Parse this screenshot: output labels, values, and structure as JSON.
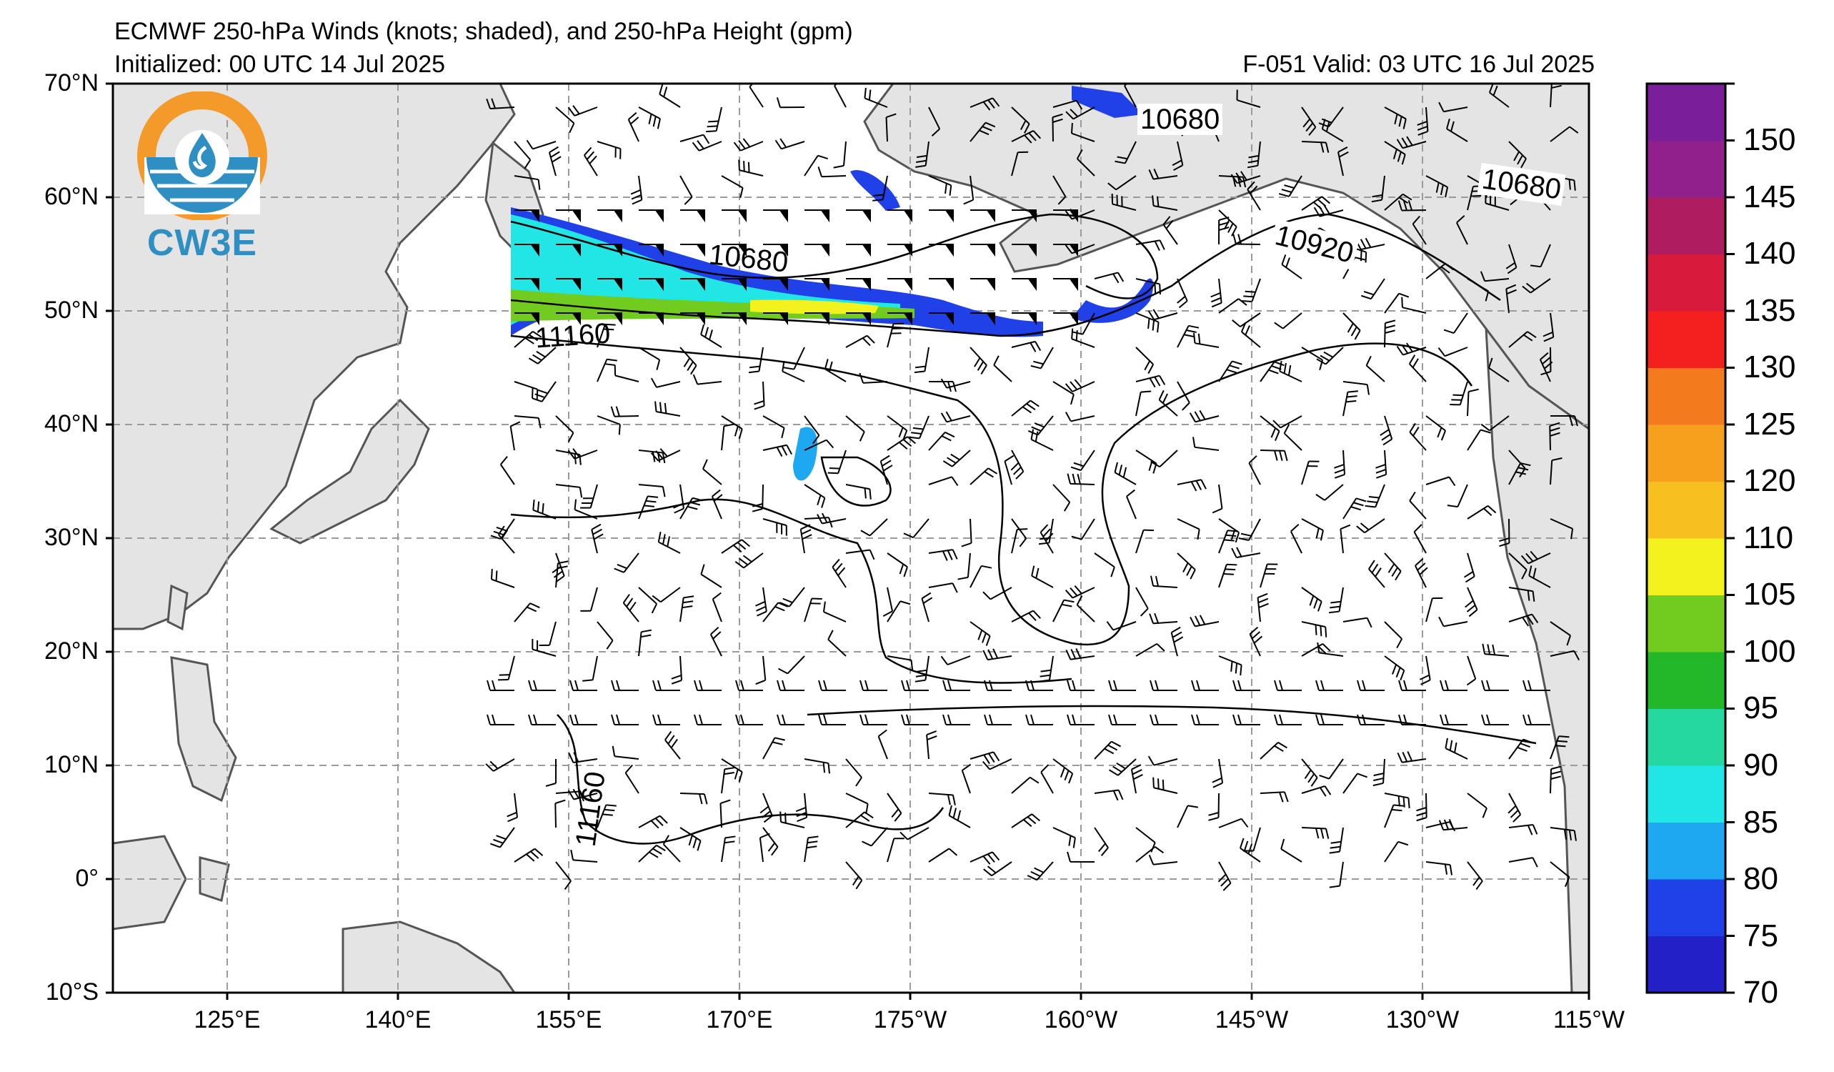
{
  "titles": {
    "line1": "ECMWF 250-hPa Winds (knots; shaded), and 250-hPa Height (gpm)",
    "line2": "Initialized: 00 UTC 14 Jul 2025",
    "right": "F-051  Valid: 03 UTC 16 Jul 2025"
  },
  "logo": {
    "text": "CW3E",
    "colors": {
      "sun": "#f39a2a",
      "water": "#2f8fc2"
    }
  },
  "axes": {
    "lat_labels": [
      "70°N",
      "60°N",
      "50°N",
      "40°N",
      "30°N",
      "20°N",
      "10°N",
      "0°",
      "10°S"
    ],
    "lon_labels": [
      "125°E",
      "140°E",
      "155°E",
      "170°E",
      "175°W",
      "160°W",
      "145°W",
      "130°W",
      "115°W"
    ]
  },
  "contour_labels": [
    "10680",
    "10680",
    "10680",
    "10920",
    "11160",
    "11160"
  ],
  "colorbar": {
    "ticks": [
      "70",
      "75",
      "80",
      "85",
      "90",
      "95",
      "100",
      "105",
      "110",
      "120",
      "125",
      "130",
      "135",
      "140",
      "145",
      "150"
    ],
    "colors": [
      "#2420c8",
      "#2040e8",
      "#1ea8f2",
      "#22e6e6",
      "#24d8a0",
      "#22b82a",
      "#72cc20",
      "#f4f21e",
      "#f6c020",
      "#f6a01e",
      "#f47a1e",
      "#f42020",
      "#d81a3c",
      "#b01c60",
      "#92208c",
      "#7a1e9a"
    ]
  },
  "style": {
    "land": "#e4e4e4",
    "coast": "#555555",
    "grid": "#9a9a9a",
    "contour": "#000000"
  }
}
